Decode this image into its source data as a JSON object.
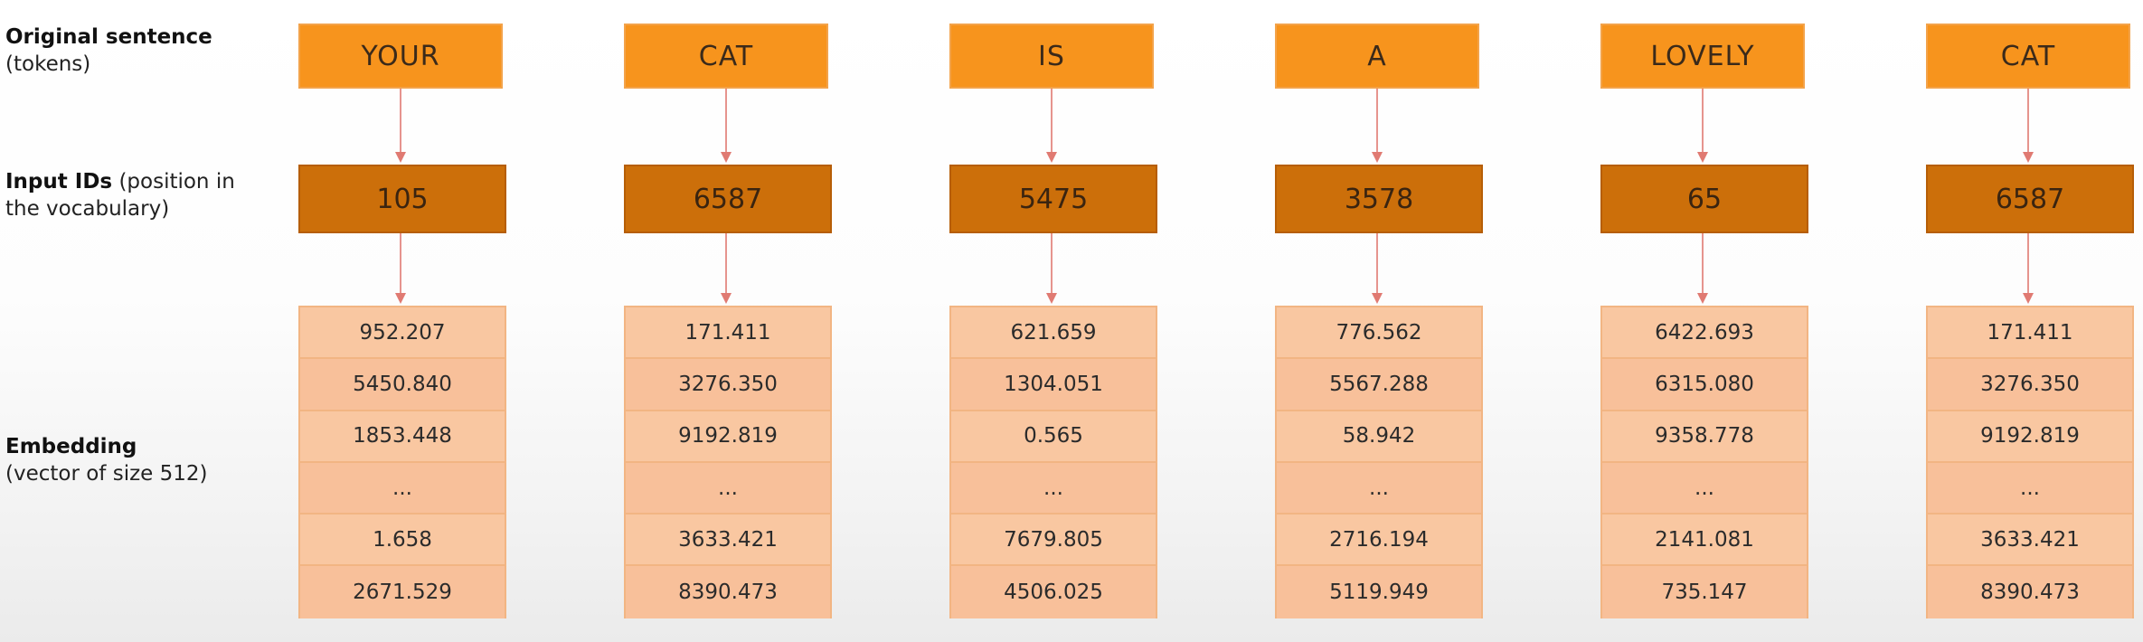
{
  "labels": {
    "sentence_bold": "Original sentence",
    "sentence_sub": "(tokens)",
    "ids_bold": "Input IDs",
    "ids_sub_1": "(position in",
    "ids_sub_2": "the vocabulary)",
    "emb_bold": "Embedding",
    "emb_sub": "(vector of size 512)"
  },
  "colors": {
    "token": "#f7941d",
    "input_id": "#cc6f0a",
    "embedding_cell": "#f9c7a1",
    "arrow": "#e07a72"
  },
  "tokens": [
    {
      "token": "YOUR",
      "id": "105",
      "embedding": [
        "952.207",
        "5450.840",
        "1853.448",
        "...",
        "1.658",
        "2671.529"
      ]
    },
    {
      "token": "CAT",
      "id": "6587",
      "embedding": [
        "171.411",
        "3276.350",
        "9192.819",
        "...",
        "3633.421",
        "8390.473"
      ]
    },
    {
      "token": "IS",
      "id": "5475",
      "embedding": [
        "621.659",
        "1304.051",
        "0.565",
        "...",
        "7679.805",
        "4506.025"
      ]
    },
    {
      "token": "A",
      "id": "3578",
      "embedding": [
        "776.562",
        "5567.288",
        "58.942",
        "...",
        "2716.194",
        "5119.949"
      ]
    },
    {
      "token": "LOVELY",
      "id": "65",
      "embedding": [
        "6422.693",
        "6315.080",
        "9358.778",
        "...",
        "2141.081",
        "735.147"
      ]
    },
    {
      "token": "CAT",
      "id": "6587",
      "embedding": [
        "171.411",
        "3276.350",
        "9192.819",
        "...",
        "3633.421",
        "8390.473"
      ]
    }
  ]
}
